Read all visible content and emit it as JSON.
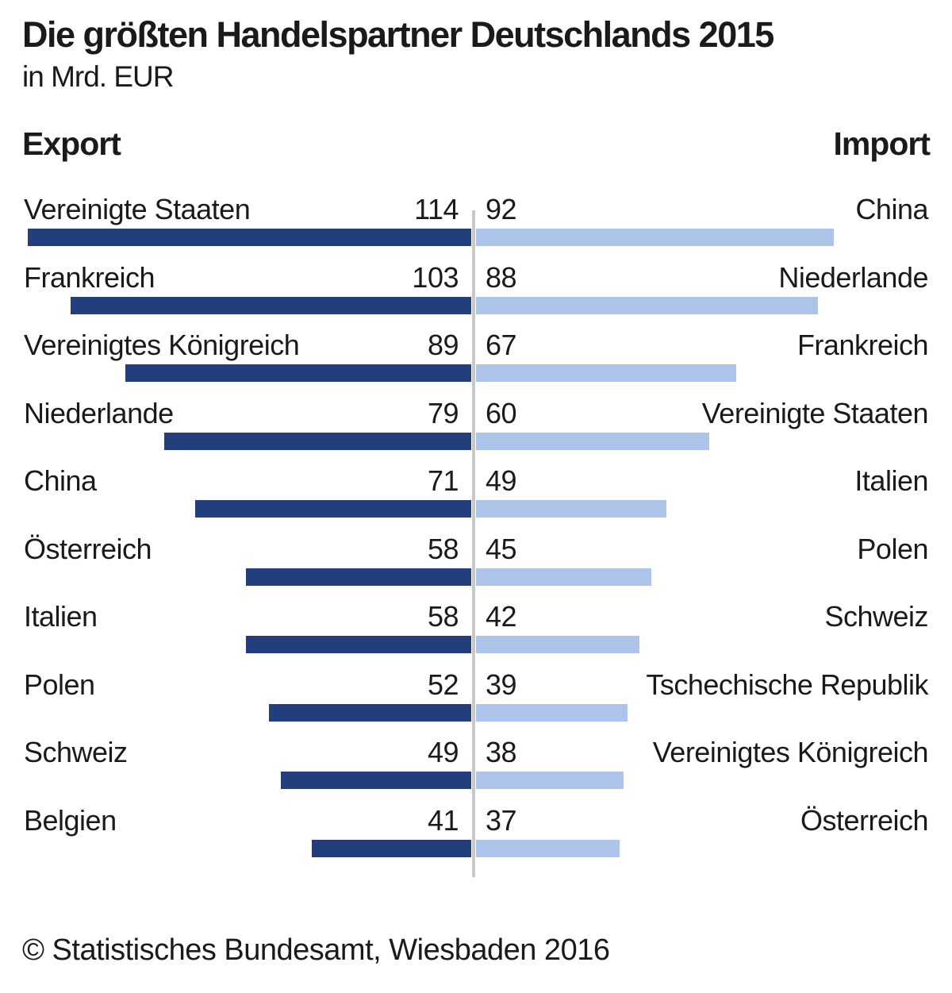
{
  "chart": {
    "title": "Die größten Handelspartner Deutschlands 2015",
    "subtitle": "in Mrd. EUR",
    "left_header": "Export",
    "right_header": "Import",
    "source": "© Statistisches Bundesamt, Wiesbaden 2016"
  },
  "chart_data": {
    "type": "bar",
    "orientation": "horizontal-diverging",
    "title": "Die größten Handelspartner Deutschlands 2015",
    "unit": "Mrd. EUR",
    "xlabel": "",
    "ylabel": "",
    "value_range_per_side": [
      0,
      120
    ],
    "grid": false,
    "legend_position": "column-headers",
    "series": [
      {
        "name": "Export",
        "side": "left",
        "color": "#223e7c"
      },
      {
        "name": "Import",
        "side": "right",
        "color": "#acc3ea"
      }
    ],
    "axis_line_color": "#c8c8c8",
    "text_color": "#1a1a1a",
    "rows": [
      {
        "export_country": "Vereinigte Staaten",
        "export_value": 114,
        "import_value": 92,
        "import_country": "China"
      },
      {
        "export_country": "Frankreich",
        "export_value": 103,
        "import_value": 88,
        "import_country": "Niederlande"
      },
      {
        "export_country": "Vereinigtes Königreich",
        "export_value": 89,
        "import_value": 67,
        "import_country": "Frankreich"
      },
      {
        "export_country": "Niederlande",
        "export_value": 79,
        "import_value": 60,
        "import_country": "Vereinigte Staaten"
      },
      {
        "export_country": "China",
        "export_value": 71,
        "import_value": 49,
        "import_country": "Italien"
      },
      {
        "export_country": "Österreich",
        "export_value": 58,
        "import_value": 45,
        "import_country": "Polen"
      },
      {
        "export_country": "Italien",
        "export_value": 58,
        "import_value": 42,
        "import_country": "Schweiz"
      },
      {
        "export_country": "Polen",
        "export_value": 52,
        "import_value": 39,
        "import_country": "Tschechische Republik"
      },
      {
        "export_country": "Schweiz",
        "export_value": 49,
        "import_value": 38,
        "import_country": "Vereinigtes Königreich"
      },
      {
        "export_country": "Belgien",
        "export_value": 41,
        "import_value": 37,
        "import_country": "Österreich"
      }
    ]
  }
}
